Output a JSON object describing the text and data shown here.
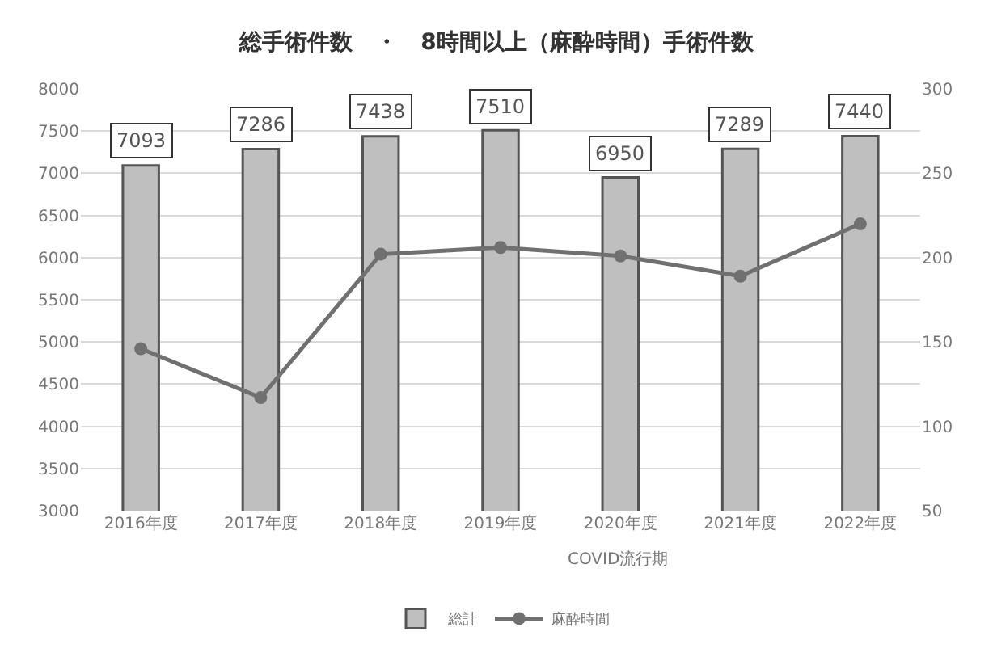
{
  "chart_data": {
    "type": "bar",
    "title": "総手術件数　・　8時間以上（麻酔時間）手術件数",
    "categories": [
      "2016年度",
      "2017年度",
      "2018年度",
      "2019年度",
      "2020年度",
      "2021年度",
      "2022年度"
    ],
    "series": [
      {
        "name": "総計",
        "color": "#bfbfbf",
        "values": [
          7093,
          7286,
          7438,
          7510,
          6950,
          7289,
          7440
        ],
        "data_labels": true
      },
      {
        "name": "麻酔時間",
        "type": "line",
        "axis": "y2",
        "color": "#707070",
        "marker": "circle",
        "values": [
          146,
          117,
          202,
          206,
          201,
          189,
          220
        ]
      }
    ],
    "ylim": [
      3000,
      8000
    ],
    "yticks": [
      3000,
      3500,
      4000,
      4500,
      5000,
      5500,
      6000,
      6500,
      7000,
      7500,
      8000
    ],
    "y2lim": [
      50,
      300
    ],
    "y2ticks": [
      50,
      100,
      150,
      200,
      250,
      300
    ],
    "annotations": [
      "COVID流行期"
    ],
    "grid": "y",
    "legend": "bottom"
  }
}
